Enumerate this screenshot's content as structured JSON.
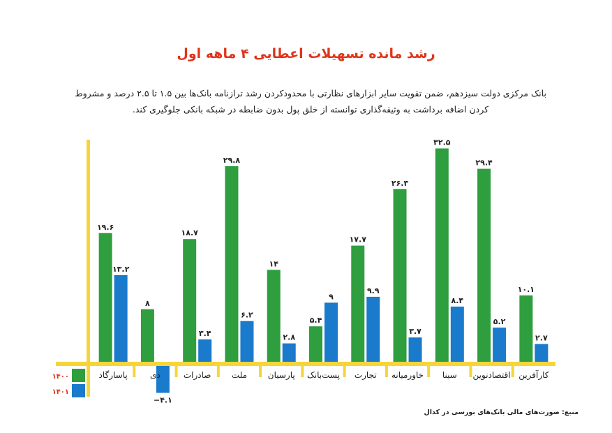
{
  "chart_data": {
    "type": "bar",
    "title": "رشد مانده تسهیلات اعطایی ۴ ماهه اول",
    "subtitle": "بانک مرکزی دولت سیزدهم، ضمن تقویت سایر ابزارهای نظارتی با محدودکردن رشد ترازنامه بانک‌ها بین ۱.۵ تا ۲.۵ درصد و مشروط کردن اضافه برداشت به وثیقه‌گذاری توانسته از خلق پول بدون ضابطه در شبکه بانکی جلوگیری کند.",
    "source": "منبع: صورت‌های مالی بانک‌های بورسی در کدال",
    "categories": [
      "پاسارگاد",
      "دی",
      "صادرات",
      "ملت",
      "پارسیان",
      "پست‌بانک",
      "تجارت",
      "خاورمیانه",
      "سینا",
      "اقتصادنوین",
      "کارآفرین"
    ],
    "series": [
      {
        "name": "۱۴۰۰",
        "color": "#2e9e3f",
        "values": [
          19.6,
          8,
          18.7,
          29.8,
          14,
          5.4,
          17.7,
          26.3,
          32.5,
          29.4,
          10.1
        ]
      },
      {
        "name": "۱۴۰۱",
        "color": "#1a7acc",
        "values": [
          13.2,
          -4.1,
          3.4,
          6.2,
          2.8,
          9,
          9.9,
          3.7,
          8.4,
          5.2,
          2.7
        ]
      }
    ],
    "legend_position": "bottom-left",
    "axis_color": "#f5d53a",
    "title_color": "#e0341a",
    "grid": false,
    "ylim": [
      -5,
      35
    ]
  }
}
